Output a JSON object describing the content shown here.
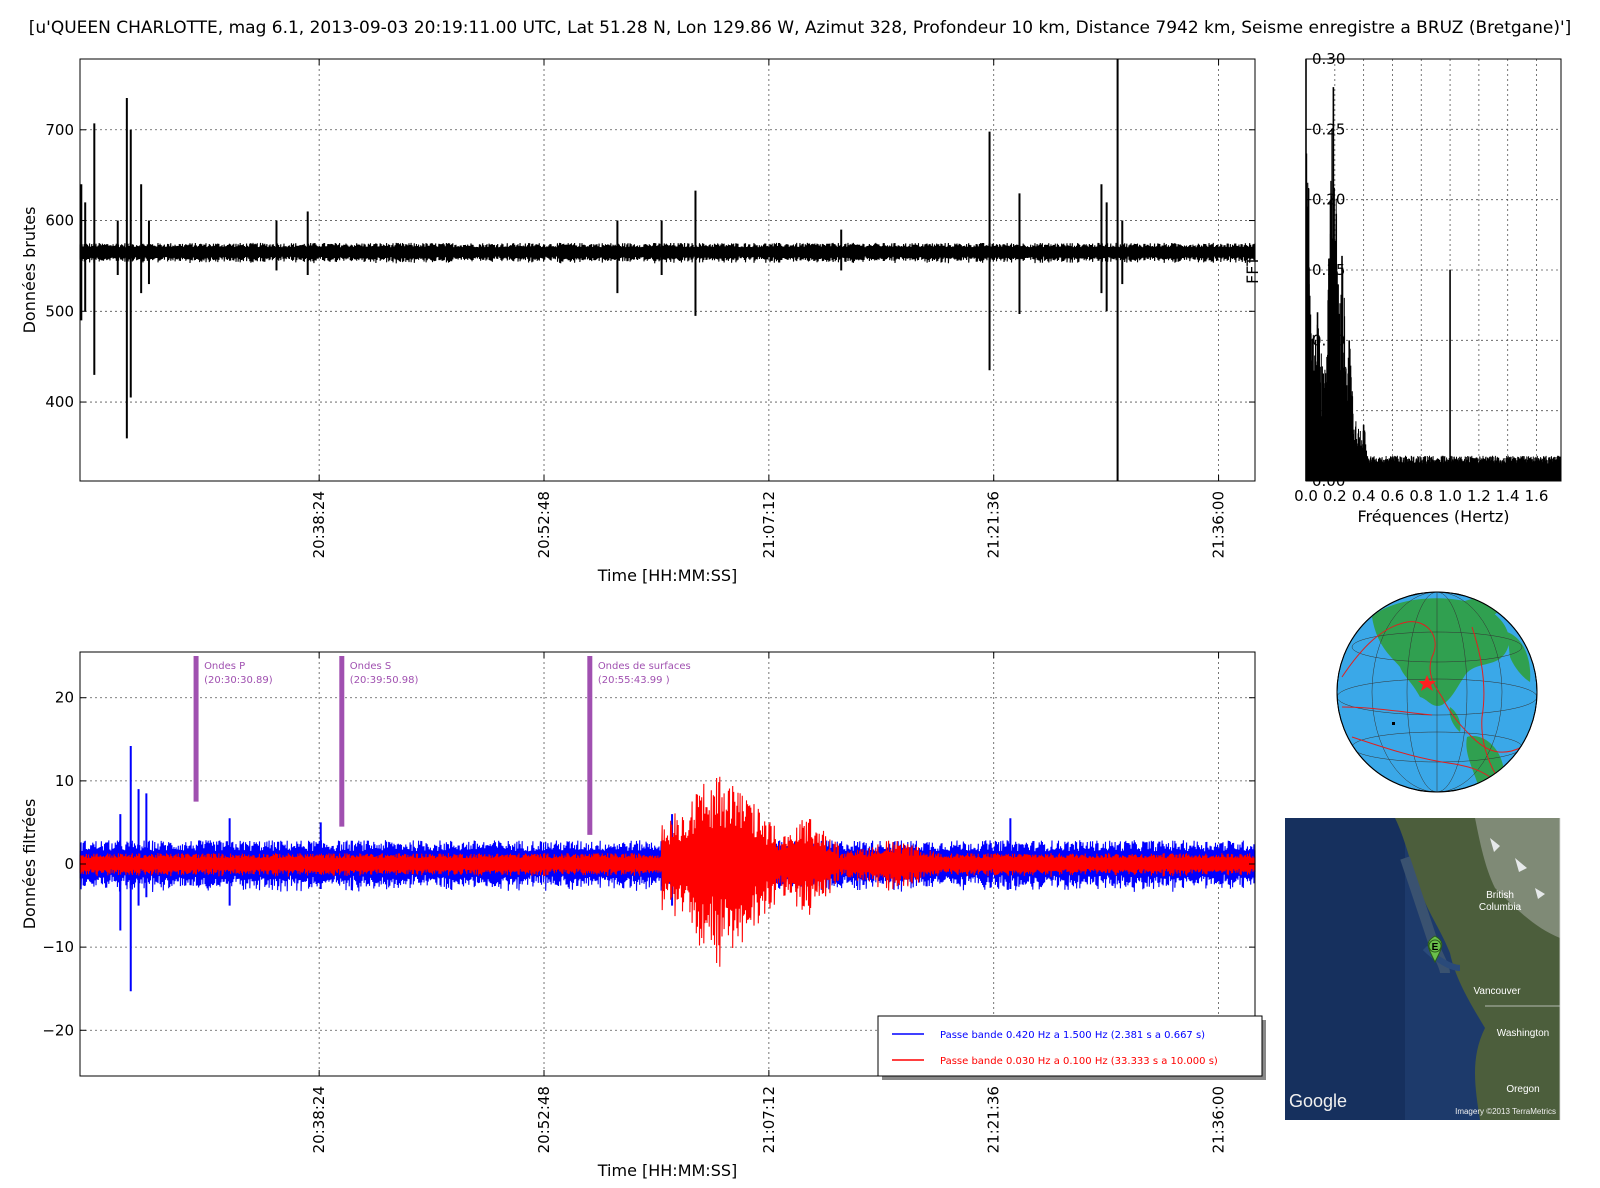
{
  "title": "[u'QUEEN CHARLOTTE, mag 6.1, 2013-09-03 20:19:11.00 UTC, Lat 51.28 N, Lon 129.86 W, Azimut 328, Profondeur 10 km, Distance 7942 km, Seisme enregistre a BRUZ (Bretgane)']",
  "chart_data": [
    {
      "type": "line",
      "name": "raw",
      "ylabel": "Données brutes",
      "xlabel": "Time [HH:MM:SS]",
      "x_ticks": [
        "20:38:24",
        "20:52:48",
        "21:07:12",
        "21:21:36",
        "21:36:00"
      ],
      "x_tick_seconds": [
        2304,
        3168,
        4032,
        4896,
        5760
      ],
      "xlim": [
        1385,
        5900
      ],
      "y_ticks": [
        "400",
        "500",
        "600",
        "700"
      ],
      "y_tick_values": [
        400,
        500,
        600,
        700
      ],
      "ylim": [
        313,
        778
      ],
      "grid": true,
      "series": [
        {
          "color": "#000000",
          "baseline": 565,
          "noise": 8,
          "spikes": [
            {
              "t": 1390,
              "min": 490,
              "max": 640
            },
            {
              "t": 1405,
              "min": 500,
              "max": 620
            },
            {
              "t": 1440,
              "min": 430,
              "max": 707
            },
            {
              "t": 1530,
              "min": 540,
              "max": 600
            },
            {
              "t": 1565,
              "min": 360,
              "max": 735
            },
            {
              "t": 1580,
              "min": 405,
              "max": 700
            },
            {
              "t": 1620,
              "min": 520,
              "max": 640
            },
            {
              "t": 1650,
              "min": 530,
              "max": 600
            },
            {
              "t": 2140,
              "min": 545,
              "max": 600
            },
            {
              "t": 2260,
              "min": 540,
              "max": 610
            },
            {
              "t": 3450,
              "min": 520,
              "max": 600
            },
            {
              "t": 3620,
              "min": 540,
              "max": 600
            },
            {
              "t": 3750,
              "min": 495,
              "max": 633
            },
            {
              "t": 4310,
              "min": 545,
              "max": 590
            },
            {
              "t": 4880,
              "min": 435,
              "max": 698
            },
            {
              "t": 4995,
              "min": 497,
              "max": 630
            },
            {
              "t": 5310,
              "min": 520,
              "max": 640
            },
            {
              "t": 5330,
              "min": 500,
              "max": 620
            },
            {
              "t": 5372,
              "min": 313,
              "max": 778
            },
            {
              "t": 5390,
              "min": 530,
              "max": 600
            }
          ]
        }
      ]
    },
    {
      "type": "line",
      "name": "fft",
      "ylabel": "FFT",
      "xlabel": "Fréquences (Hertz)",
      "x_ticks": [
        "0.0",
        "0.2",
        "0.4",
        "0.6",
        "0.8",
        "1.0",
        "1.2",
        "1.4",
        "1.6"
      ],
      "x_tick_values": [
        0.0,
        0.2,
        0.4,
        0.6,
        0.8,
        1.0,
        1.2,
        1.4,
        1.6
      ],
      "xlim": [
        0,
        1.77
      ],
      "y_ticks": [
        "0.00",
        "0.05",
        "0.10",
        "0.15",
        "0.20",
        "0.25",
        "0.30"
      ],
      "y_tick_values": [
        0.0,
        0.05,
        0.1,
        0.15,
        0.2,
        0.25,
        0.3
      ],
      "ylim": [
        0,
        0.3
      ],
      "grid": true,
      "peaks": [
        {
          "f": 0.0,
          "a": 0.3
        },
        {
          "f": 0.02,
          "a": 0.14
        },
        {
          "f": 0.08,
          "a": 0.12
        },
        {
          "f": 0.17,
          "a": 0.2
        },
        {
          "f": 0.19,
          "a": 0.28
        },
        {
          "f": 0.21,
          "a": 0.19
        },
        {
          "f": 0.25,
          "a": 0.16
        },
        {
          "f": 0.3,
          "a": 0.1
        },
        {
          "f": 0.4,
          "a": 0.04
        },
        {
          "f": 1.0,
          "a": 0.15
        }
      ]
    },
    {
      "type": "line",
      "name": "filtered",
      "ylabel": "Données filtrées",
      "xlabel": "Time [HH:MM:SS]",
      "x_ticks": [
        "20:38:24",
        "20:52:48",
        "21:07:12",
        "21:21:36",
        "21:36:00"
      ],
      "x_tick_seconds": [
        2304,
        3168,
        4032,
        4896,
        5760
      ],
      "xlim": [
        1385,
        5900
      ],
      "y_ticks": [
        "−20",
        "−10",
        "0",
        "10",
        "20"
      ],
      "y_tick_values": [
        -20,
        -10,
        0,
        10,
        20
      ],
      "ylim": [
        -25.5,
        25.5
      ],
      "grid": true,
      "phases": [
        {
          "label": "Ondes P",
          "time": "(20:30:30.89)",
          "t": 1831,
          "y_bottom": 7.5
        },
        {
          "label": "Ondes S",
          "time": "(20:39:50.98)",
          "t": 2391,
          "y_bottom": 4.5
        },
        {
          "label": "Ondes de surfaces",
          "time": "(20:55:43.99 )",
          "t": 3344,
          "y_bottom": 3.5
        }
      ],
      "series": [
        {
          "name": "Passe bande 0.420 Hz a 1.500 Hz (2.381 s a 0.667 s)",
          "color": "#0000ff",
          "noise": 2.2,
          "spikes": [
            {
              "t": 1540,
              "min": -8,
              "max": 6
            },
            {
              "t": 1580,
              "min": -15.3,
              "max": 14.2
            },
            {
              "t": 1610,
              "min": -5,
              "max": 9
            },
            {
              "t": 1640,
              "min": -4,
              "max": 8.5
            },
            {
              "t": 1960,
              "min": -5,
              "max": 5.5
            },
            {
              "t": 2310,
              "min": -3,
              "max": 5
            },
            {
              "t": 3660,
              "min": -5,
              "max": 6
            },
            {
              "t": 4960,
              "min": -3,
              "max": 5.5
            }
          ]
        },
        {
          "name": "Passe bande 0.030 Hz a 0.100 Hz (33.333 s a 10.000 s)",
          "color": "#ff0000",
          "noise": 1.0,
          "packets": [
            {
              "t_start": 3620,
              "t_end": 4060,
              "amp": 11.5
            },
            {
              "t_start": 4060,
              "t_end": 4300,
              "amp": 6
            },
            {
              "t_start": 4300,
              "t_end": 4700,
              "amp": 3
            }
          ]
        }
      ]
    }
  ],
  "globe": {
    "event_marker": "red-star",
    "ocean_color": "#3aa8e8",
    "land_color": "#30a050",
    "plate_boundary_color": "#e02020"
  },
  "map": {
    "labels": {
      "british_columbia": "British\nColumbia",
      "vancouver": "Vancouver",
      "washington": "Washington",
      "oregon": "Oregon"
    },
    "marker_letter": "E",
    "google_logo": "Google",
    "imagery_credit": "Imagery ©2013 TerraMetrics"
  }
}
